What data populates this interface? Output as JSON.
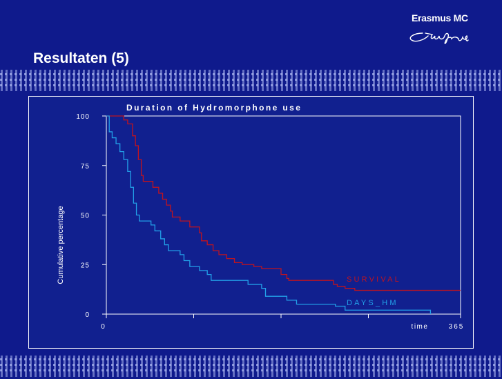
{
  "slide": {
    "title": "Resultaten (5)",
    "logo_text": "Erasmus MC",
    "logo_signature": "Erasmus"
  },
  "colors": {
    "background": "#0f1a8c",
    "survival": "#c0131f",
    "days_hm": "#22a0e8"
  },
  "chart_data": {
    "type": "line",
    "title": "Duration of Hydromorphone use",
    "xlabel": "time",
    "ylabel": "Cumulative percentage",
    "xlim": [
      0,
      365
    ],
    "ylim": [
      0,
      100
    ],
    "x_ticks": [
      0,
      90,
      180,
      270,
      365
    ],
    "x_tick_labels": [
      "0",
      "365"
    ],
    "y_ticks": [
      0,
      25,
      50,
      75,
      100
    ],
    "y_tick_labels": [
      "0",
      "25",
      "50",
      "75",
      "100"
    ],
    "step": true,
    "series": [
      {
        "name": "SURVIVAL",
        "color": "#c0131f",
        "label_position": "right",
        "points": [
          [
            0,
            100
          ],
          [
            12,
            100
          ],
          [
            18,
            98
          ],
          [
            22,
            96
          ],
          [
            27,
            90
          ],
          [
            30,
            85
          ],
          [
            33,
            78
          ],
          [
            36,
            70
          ],
          [
            38,
            67
          ],
          [
            48,
            64
          ],
          [
            54,
            61
          ],
          [
            58,
            58
          ],
          [
            62,
            55
          ],
          [
            66,
            52
          ],
          [
            68,
            49
          ],
          [
            76,
            47
          ],
          [
            86,
            44
          ],
          [
            96,
            41
          ],
          [
            98,
            37
          ],
          [
            104,
            35
          ],
          [
            110,
            32
          ],
          [
            116,
            30
          ],
          [
            124,
            28
          ],
          [
            132,
            26
          ],
          [
            140,
            25
          ],
          [
            152,
            24
          ],
          [
            160,
            23
          ],
          [
            180,
            20
          ],
          [
            186,
            18
          ],
          [
            188,
            17
          ],
          [
            230,
            17
          ],
          [
            234,
            15
          ],
          [
            238,
            14
          ],
          [
            246,
            13
          ],
          [
            256,
            12
          ],
          [
            365,
            12
          ]
        ]
      },
      {
        "name": "DAYS_HM",
        "color": "#22a0e8",
        "label_position": "right",
        "points": [
          [
            0,
            100
          ],
          [
            3,
            92
          ],
          [
            6,
            89
          ],
          [
            10,
            86
          ],
          [
            14,
            82
          ],
          [
            18,
            78
          ],
          [
            22,
            72
          ],
          [
            25,
            64
          ],
          [
            28,
            56
          ],
          [
            31,
            50
          ],
          [
            34,
            47
          ],
          [
            40,
            47
          ],
          [
            46,
            45
          ],
          [
            50,
            42
          ],
          [
            56,
            38
          ],
          [
            60,
            35
          ],
          [
            64,
            32
          ],
          [
            76,
            30
          ],
          [
            80,
            27
          ],
          [
            86,
            24
          ],
          [
            96,
            22
          ],
          [
            104,
            20
          ],
          [
            108,
            17
          ],
          [
            126,
            17
          ],
          [
            146,
            15
          ],
          [
            160,
            13
          ],
          [
            164,
            9
          ],
          [
            186,
            7
          ],
          [
            196,
            5
          ],
          [
            236,
            4
          ],
          [
            246,
            2
          ],
          [
            334,
            2
          ],
          [
            334,
            0
          ]
        ]
      }
    ]
  }
}
